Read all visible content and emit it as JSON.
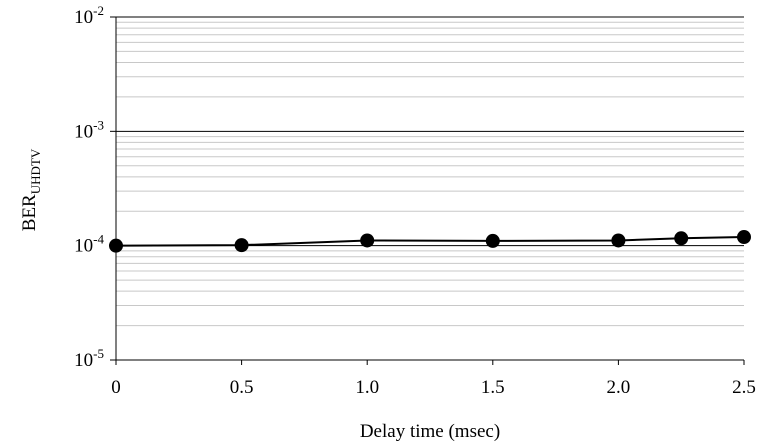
{
  "chart_data": {
    "type": "line",
    "xlabel": "Delay time  (msec)",
    "ylabel": {
      "base": "BER",
      "subscript": "UHDTV"
    },
    "y_scale": "log",
    "xlim": [
      0,
      2.5
    ],
    "ylim": [
      1e-05,
      0.01
    ],
    "x_ticks": [
      "0",
      "0.5",
      "1.0",
      "1.5",
      "2.0",
      "2.5"
    ],
    "y_ticks": [
      {
        "base": "10",
        "exp": "-2"
      },
      {
        "base": "10",
        "exp": "-3"
      },
      {
        "base": "10",
        "exp": "-4"
      },
      {
        "base": "10",
        "exp": "-5"
      }
    ],
    "grid": true,
    "series": [
      {
        "x": [
          0,
          0.5,
          1.0,
          1.5,
          2.0,
          2.25,
          2.5
        ],
        "y": [
          0.0001,
          0.000101,
          0.000111,
          0.00011,
          0.000111,
          0.000116,
          0.000119
        ]
      }
    ],
    "colors": {
      "line": "#000000",
      "marker": "#000000",
      "major_grid": "#000000",
      "minor_grid": "#c8c8c8"
    }
  }
}
